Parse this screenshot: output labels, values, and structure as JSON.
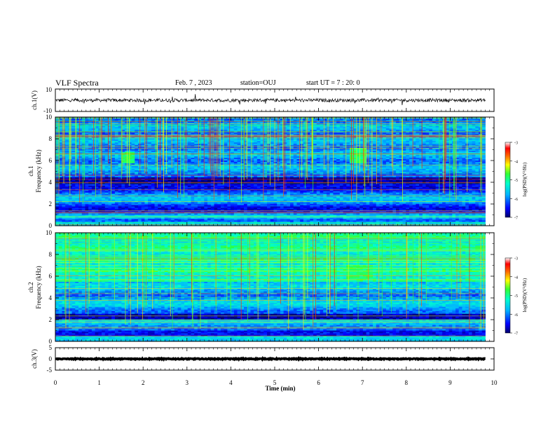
{
  "header": {
    "title": "VLF Spectra",
    "date": "Feb. 7 , 2023",
    "station": "station=OUJ",
    "start_ut": "start UT =  7 : 20: 0"
  },
  "colors": {
    "spectrogram_scale": [
      "#00006a",
      "#0000ff",
      "#0066ff",
      "#00ccff",
      "#00ffcc",
      "#33ff66",
      "#99ff00",
      "#ffff00",
      "#ff9900",
      "#ff0000",
      "#ffffff"
    ]
  },
  "chart_data": [
    {
      "type": "line",
      "panel": "ch1-waveform",
      "ylabel": "ch.1(V)",
      "ytick_labels": [
        "10",
        "-10"
      ],
      "ylim": [
        -10,
        10
      ],
      "xlim": [
        0,
        10
      ],
      "series": [
        {
          "values_description": "noise",
          "mean": 0,
          "amplitude": 1.5
        }
      ]
    },
    {
      "type": "heatmap",
      "panel": "ch1-spectrogram",
      "ylabel_lines": [
        "ch.1",
        "Frequency (kHz)"
      ],
      "ylim": [
        0,
        10
      ],
      "yticks": [
        0,
        2,
        4,
        6,
        8,
        10
      ],
      "xlim": [
        0,
        9.8
      ],
      "colorbar": {
        "label": "log(PSD)(V²/Hz)",
        "ticks": [
          -3,
          -4,
          -5,
          -6,
          -7
        ],
        "range": [
          -7,
          -3
        ]
      },
      "features": [
        {
          "kind": "chorus-patch",
          "t": [
            6.7,
            7.1
          ],
          "f_khz": [
            5.8,
            7.2
          ]
        },
        {
          "kind": "chorus-patch",
          "t": [
            1.5,
            1.8
          ],
          "f_khz": [
            5.8,
            6.8
          ]
        },
        {
          "kind": "dark-band",
          "f_khz": [
            3.8,
            4.5
          ]
        },
        {
          "kind": "sferics",
          "description": "vertical broadband impulsive lines throughout"
        }
      ]
    },
    {
      "type": "heatmap",
      "panel": "ch2-spectrogram",
      "ylabel_lines": [
        "ch.2",
        "Frequency (kHz)"
      ],
      "ylim": [
        0,
        10
      ],
      "yticks": [
        0,
        2,
        4,
        6,
        8,
        10
      ],
      "xlim": [
        0,
        9.8
      ],
      "colorbar": {
        "label": "log(PSD)(V²/Hz)",
        "ticks": [
          -3,
          -4,
          -5,
          -6,
          -7
        ],
        "range": [
          -7,
          -3
        ]
      },
      "features": [
        {
          "kind": "high-band-emission",
          "f_khz": [
            5.5,
            10
          ]
        },
        {
          "kind": "chorus-patch",
          "t": [
            6.6,
            7.2
          ],
          "f_khz": [
            5.6,
            7.0
          ]
        },
        {
          "kind": "dark-band",
          "f_khz": [
            2.0,
            2.6
          ]
        },
        {
          "kind": "dark-band",
          "f_khz": [
            0.5,
            1.0
          ]
        }
      ]
    },
    {
      "type": "line",
      "panel": "ch3-waveform",
      "ylabel": "ch.3(V)",
      "ytick_labels": [
        "5",
        "0",
        "-5"
      ],
      "ylim": [
        -5,
        5
      ],
      "xlim": [
        0,
        10
      ],
      "series": [
        {
          "values_description": "flat",
          "mean": 0,
          "amplitude": 0.2
        }
      ]
    }
  ],
  "time_axis": {
    "label": "Time (min)",
    "ticks": [
      "0",
      "1",
      "2",
      "3",
      "4",
      "5",
      "6",
      "7",
      "8",
      "9",
      "10"
    ]
  }
}
